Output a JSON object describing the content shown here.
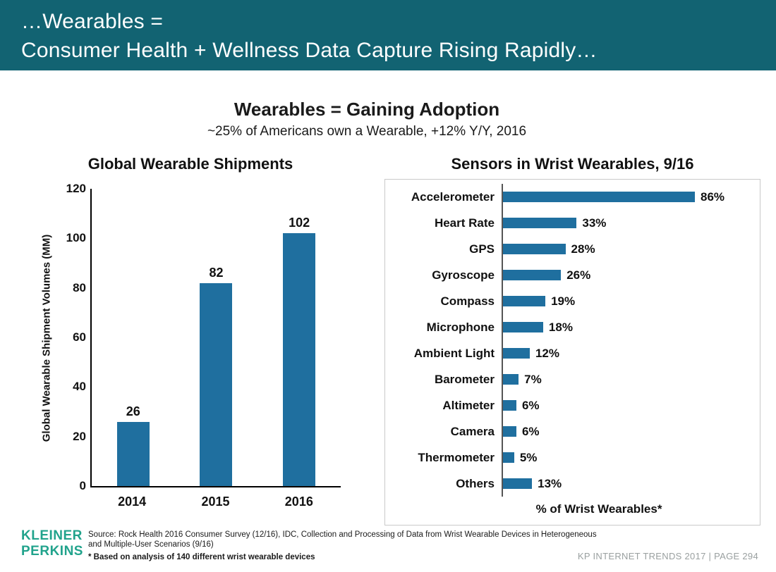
{
  "header": {
    "line1": "…Wearables =",
    "line2": "Consumer Health + Wellness Data Capture Rising Rapidly…"
  },
  "title": "Wearables = Gaining Adoption",
  "subtitle": "~25% of Americans own a Wearable, +12% Y/Y, 2016",
  "colors": {
    "header_bg": "#126372",
    "bar": "#1f6f9f",
    "logo": "#21a38c"
  },
  "chart_data": [
    {
      "type": "bar",
      "title": "Global Wearable Shipments",
      "ylabel": "Global Wearable Shipment Volumes (MM)",
      "categories": [
        "2014",
        "2015",
        "2016"
      ],
      "values": [
        26,
        82,
        102
      ],
      "ylim": [
        0,
        120
      ],
      "yticks": [
        0,
        20,
        40,
        60,
        80,
        100,
        120
      ],
      "grid": false,
      "legend": "none"
    },
    {
      "type": "bar",
      "orientation": "horizontal",
      "title": "Sensors in Wrist Wearables, 9/16",
      "xlabel": "% of Wrist Wearables*",
      "categories": [
        "Accelerometer",
        "Heart Rate",
        "GPS",
        "Gyroscope",
        "Compass",
        "Microphone",
        "Ambient Light",
        "Barometer",
        "Altimeter",
        "Camera",
        "Thermometer",
        "Others"
      ],
      "values": [
        86,
        33,
        28,
        26,
        19,
        18,
        12,
        7,
        6,
        6,
        5,
        13
      ],
      "value_suffix": "%",
      "grid": false,
      "legend": "none"
    }
  ],
  "footer": {
    "logo_line1": "KLEINER",
    "logo_line2": "PERKINS",
    "source_line1": "Source: Rock Health 2016 Consumer Survey (12/16), IDC, Collection and Processing of Data from Wrist Wearable Devices in Heterogeneous",
    "source_line2": "and Multiple-User Scenarios (9/16)",
    "source_line3": "* Based on analysis of 140 different wrist wearable devices",
    "page_info": "KP INTERNET TRENDS 2017   |   PAGE 294"
  }
}
